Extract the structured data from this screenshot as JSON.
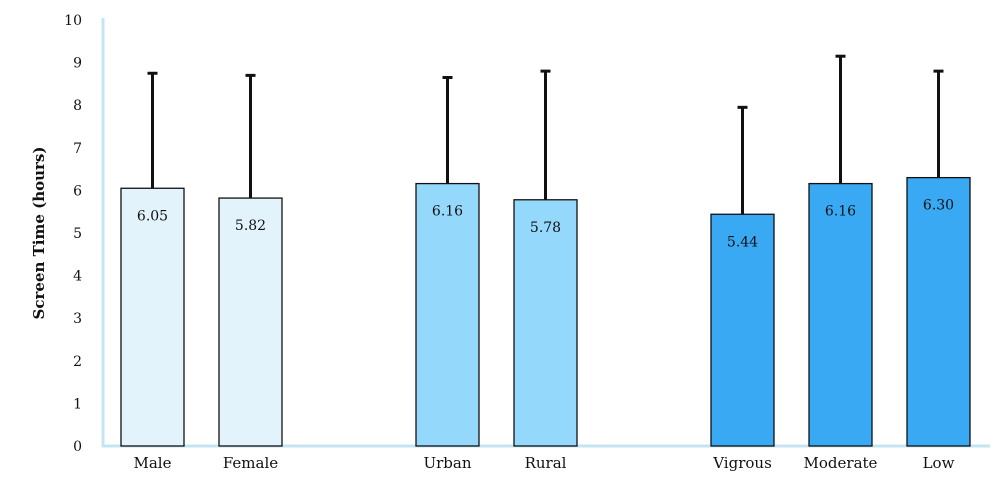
{
  "chart_data": {
    "type": "bar",
    "title": "",
    "xlabel": "",
    "ylabel": "Screen Time (hours)",
    "ylim": [
      0,
      10
    ],
    "yticks": [
      0,
      1,
      2,
      3,
      4,
      5,
      6,
      7,
      8,
      9,
      10
    ],
    "grid": false,
    "legend": "none",
    "error_bars": "upper only",
    "groups": [
      {
        "color": "#e3f3fc",
        "bars": [
          {
            "category": "Male",
            "value": 6.05,
            "label": "6.05",
            "error_top": 8.75
          },
          {
            "category": "Female",
            "value": 5.82,
            "label": "5.82",
            "error_top": 8.7
          }
        ]
      },
      {
        "color": "#94d8fb",
        "bars": [
          {
            "category": "Urban",
            "value": 6.16,
            "label": "6.16",
            "error_top": 8.65
          },
          {
            "category": "Rural",
            "value": 5.78,
            "label": "5.78",
            "error_top": 8.8
          }
        ]
      },
      {
        "color": "#3aa9f3",
        "bars": [
          {
            "category": "Vigrous",
            "value": 5.44,
            "label": "5.44",
            "error_top": 7.95
          },
          {
            "category": "Moderate",
            "value": 6.16,
            "label": "6.16",
            "error_top": 9.15
          },
          {
            "category": "Low",
            "value": 6.3,
            "label": "6.30",
            "error_top": 8.8
          }
        ]
      }
    ],
    "axis_color": "#c5e4f3"
  }
}
